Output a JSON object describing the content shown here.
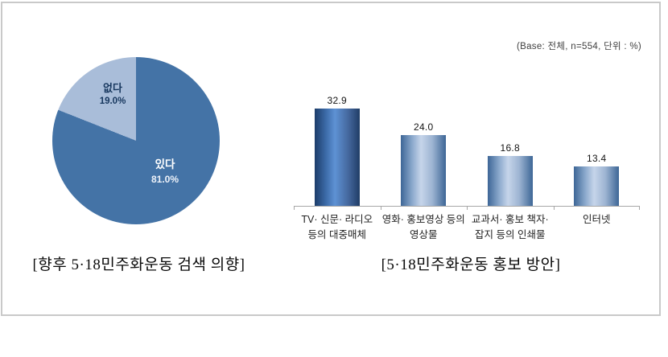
{
  "base_note": "(Base: 전체, n=554, 단위 : %)",
  "pie": {
    "caption": "[향후 5·18민주화운동 검색 의향]",
    "yes_label": "있다",
    "yes_value": "81.0%",
    "no_label": "없다",
    "no_value": "19.0%"
  },
  "bars": {
    "caption": "[5·18민주화운동 홍보 방안]",
    "value_labels": [
      "32.9",
      "24.0",
      "16.8",
      "13.4"
    ],
    "categories": [
      {
        "line1": "TV· 신문· 라디오",
        "line2": "등의 대중매체"
      },
      {
        "line1": "영화· 홍보영상 등의",
        "line2": "영상물"
      },
      {
        "line1": "교과서· 홍보 책자·",
        "line2": "잡지 등의 인쇄물"
      },
      {
        "line1": "인터넷",
        "line2": ""
      }
    ]
  },
  "chart_data": [
    {
      "type": "pie",
      "title": "[향후 5·18민주화운동 검색 의향]",
      "labels": [
        "있다",
        "없다"
      ],
      "values": [
        81.0,
        19.0
      ],
      "unit": "%",
      "colors": [
        "#4473a6",
        "#a9bdd9"
      ],
      "label_text_colors": [
        "#ffffff",
        "#17375e"
      ],
      "start_angle": "12-o-clock",
      "direction": "clockwise",
      "legend_position": "none"
    },
    {
      "type": "bar",
      "title": "[5·18민주화운동 홍보 방안]",
      "base_note": "(Base: 전체, n=554, 단위 : %)",
      "categories": [
        "TV· 신문· 라디오 등의 대중매체",
        "영화· 홍보영상 등의 영상물",
        "교과서· 홍보 책자· 잡지 등의 인쇄물",
        "인터넷"
      ],
      "values": [
        32.9,
        24.0,
        16.8,
        13.4
      ],
      "unit": "%",
      "ylim": [
        0,
        42.4
      ],
      "grid": false,
      "legend_position": "none",
      "bar_colors": {
        "first": [
          "#1c3c69",
          "#5e92d4"
        ],
        "others": [
          "#3d6696",
          "#c6d5ea"
        ]
      },
      "axis_color": "#a6a6a6"
    }
  ]
}
